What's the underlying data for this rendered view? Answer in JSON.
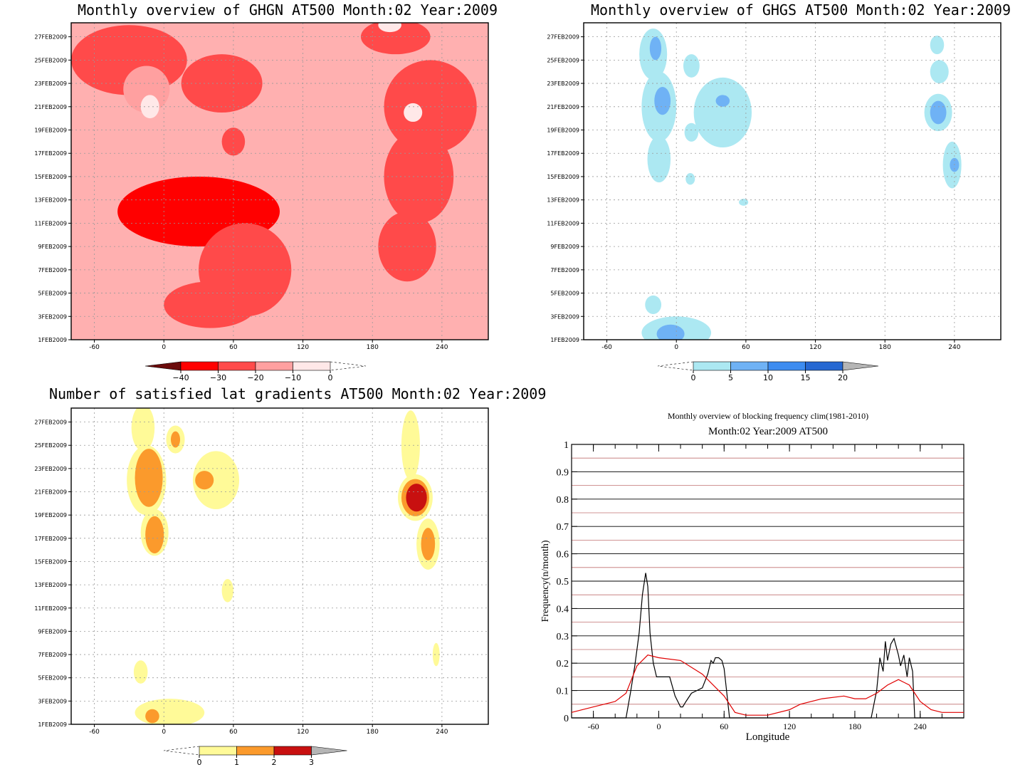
{
  "colors": {
    "ghgn": [
      "#6b0b0b",
      "#ff0000",
      "#ff4a4a",
      "#ffa0a0",
      "#ffe8e8"
    ],
    "ghgs": [
      "#ace8f2",
      "#6fb2f5",
      "#3d8cf0",
      "#2668d2",
      "#b5b5b5"
    ],
    "grad": [
      "#fffa98",
      "#fb9a2c",
      "#c81010",
      "#b5b5b5"
    ],
    "freq_series": [
      "#000000",
      "#e00000"
    ]
  },
  "panels": [
    {
      "title": "Monthly overview of GHGN AT500 Month:02 Year:2009",
      "colorbar_labels": [
        "−40",
        "−30",
        "−20",
        "−10",
        "0"
      ]
    },
    {
      "title": "Monthly overview of GHGS AT500 Month:02 Year:2009",
      "colorbar_labels": [
        "0",
        "5",
        "10",
        "15",
        "20"
      ]
    },
    {
      "title": "Number of satisfied lat gradients AT500 Month:02 Year:2009",
      "colorbar_labels": [
        "0",
        "1",
        "2",
        "3"
      ]
    }
  ],
  "chart_data": [
    {
      "type": "heatmap",
      "title": "Monthly overview of GHGN AT500 Month:02 Year:2009",
      "x_tick_labels": [
        "-60",
        "0",
        "60",
        "120",
        "180",
        "240"
      ],
      "y_tick_labels": [
        "1FEB2009",
        "3FEB2009",
        "5FEB2009",
        "7FEB2009",
        "9FEB2009",
        "11FEB2009",
        "13FEB2009",
        "15FEB2009",
        "17FEB2009",
        "19FEB2009",
        "21FEB2009",
        "23FEB2009",
        "25FEB2009",
        "27FEB2009"
      ],
      "xlim": [
        -80,
        280
      ],
      "ylim": [
        0,
        27.2
      ],
      "levels": [
        -40,
        -30,
        -20,
        -10,
        0
      ],
      "blobs": [
        {
          "x": -30,
          "y": 24,
          "rx": 50,
          "ry": 3,
          "level": 2
        },
        {
          "x": -15,
          "y": 21.5,
          "rx": 20,
          "ry": 2,
          "level": 3
        },
        {
          "x": -12,
          "y": 20,
          "rx": 8,
          "ry": 1,
          "level": 4
        },
        {
          "x": 50,
          "y": 22,
          "rx": 35,
          "ry": 2.5,
          "level": 2
        },
        {
          "x": 60,
          "y": 17,
          "rx": 10,
          "ry": 1.2,
          "level": 2
        },
        {
          "x": 30,
          "y": 11,
          "rx": 70,
          "ry": 3,
          "level": 1
        },
        {
          "x": 70,
          "y": 6,
          "rx": 40,
          "ry": 4,
          "level": 2
        },
        {
          "x": 40,
          "y": 3,
          "rx": 40,
          "ry": 2,
          "level": 2
        },
        {
          "x": 230,
          "y": 20,
          "rx": 40,
          "ry": 4,
          "level": 2
        },
        {
          "x": 220,
          "y": 14,
          "rx": 30,
          "ry": 4,
          "level": 2
        },
        {
          "x": 210,
          "y": 8,
          "rx": 25,
          "ry": 3,
          "level": 2
        },
        {
          "x": 215,
          "y": 19.5,
          "rx": 8,
          "ry": 0.8,
          "level": 4
        },
        {
          "x": 200,
          "y": 26,
          "rx": 30,
          "ry": 1.5,
          "level": 2
        },
        {
          "x": 195,
          "y": 27,
          "rx": 10,
          "ry": 0.6,
          "level": 4
        }
      ]
    },
    {
      "type": "heatmap",
      "title": "Monthly overview of GHGS AT500 Month:02 Year:2009",
      "x_tick_labels": [
        "-60",
        "0",
        "60",
        "120",
        "180",
        "240"
      ],
      "y_tick_labels": [
        "1FEB2009",
        "3FEB2009",
        "5FEB2009",
        "7FEB2009",
        "9FEB2009",
        "11FEB2009",
        "13FEB2009",
        "15FEB2009",
        "17FEB2009",
        "19FEB2009",
        "21FEB2009",
        "23FEB2009",
        "25FEB2009",
        "27FEB2009"
      ],
      "xlim": [
        -80,
        280
      ],
      "ylim": [
        0,
        27.2
      ],
      "levels": [
        0,
        5,
        10,
        15,
        20
      ],
      "blobs": [
        {
          "x": -20,
          "y": 24.5,
          "rx": 12,
          "ry": 2.2,
          "level": 0
        },
        {
          "x": -18,
          "y": 25,
          "rx": 5,
          "ry": 1,
          "level": 1
        },
        {
          "x": -15,
          "y": 20,
          "rx": 15,
          "ry": 3,
          "level": 0
        },
        {
          "x": -12,
          "y": 20.5,
          "rx": 7,
          "ry": 1.2,
          "level": 1
        },
        {
          "x": -15,
          "y": 15.5,
          "rx": 10,
          "ry": 2,
          "level": 0
        },
        {
          "x": 13,
          "y": 23.5,
          "rx": 7,
          "ry": 1,
          "level": 0
        },
        {
          "x": 13,
          "y": 17.8,
          "rx": 6,
          "ry": 0.8,
          "level": 0
        },
        {
          "x": 12,
          "y": 13.8,
          "rx": 4,
          "ry": 0.5,
          "level": 0
        },
        {
          "x": 40,
          "y": 19.5,
          "rx": 25,
          "ry": 3,
          "level": 0
        },
        {
          "x": 40,
          "y": 20.5,
          "rx": 6,
          "ry": 0.5,
          "level": 1
        },
        {
          "x": 58,
          "y": 11.8,
          "rx": 4,
          "ry": 0.3,
          "level": 0
        },
        {
          "x": -20,
          "y": 3,
          "rx": 7,
          "ry": 0.8,
          "level": 0
        },
        {
          "x": 0,
          "y": 0.6,
          "rx": 30,
          "ry": 1.4,
          "level": 0
        },
        {
          "x": -5,
          "y": 0.5,
          "rx": 12,
          "ry": 0.8,
          "level": 1
        },
        {
          "x": 225,
          "y": 25.3,
          "rx": 6,
          "ry": 0.8,
          "level": 0
        },
        {
          "x": 227,
          "y": 23,
          "rx": 8,
          "ry": 1,
          "level": 0
        },
        {
          "x": 226,
          "y": 19.5,
          "rx": 12,
          "ry": 1.6,
          "level": 0
        },
        {
          "x": 226,
          "y": 19.5,
          "rx": 7,
          "ry": 1,
          "level": 1
        },
        {
          "x": 238,
          "y": 15,
          "rx": 8,
          "ry": 2,
          "level": 0
        },
        {
          "x": 240,
          "y": 15,
          "rx": 4,
          "ry": 0.6,
          "level": 1
        }
      ]
    },
    {
      "type": "heatmap",
      "title": "Number of satisfied lat gradients AT500 Month:02 Year:2009",
      "x_tick_labels": [
        "-60",
        "0",
        "60",
        "120",
        "180",
        "240"
      ],
      "y_tick_labels": [
        "1FEB2009",
        "3FEB2009",
        "5FEB2009",
        "7FEB2009",
        "9FEB2009",
        "11FEB2009",
        "13FEB2009",
        "15FEB2009",
        "17FEB2009",
        "19FEB2009",
        "21FEB2009",
        "23FEB2009",
        "25FEB2009",
        "27FEB2009"
      ],
      "xlim": [
        -80,
        280
      ],
      "ylim": [
        0,
        27.2
      ],
      "levels": [
        0,
        1,
        2,
        3
      ],
      "blobs": [
        {
          "x": -18,
          "y": 25.5,
          "rx": 10,
          "ry": 2,
          "level": 0
        },
        {
          "x": 10,
          "y": 24.5,
          "rx": 8,
          "ry": 1.2,
          "level": 0
        },
        {
          "x": 10,
          "y": 24.5,
          "rx": 4,
          "ry": 0.7,
          "level": 1
        },
        {
          "x": -15,
          "y": 21,
          "rx": 17,
          "ry": 3,
          "level": 0
        },
        {
          "x": -13,
          "y": 21.2,
          "rx": 12,
          "ry": 2.5,
          "level": 1
        },
        {
          "x": -8,
          "y": 16.5,
          "rx": 12,
          "ry": 2,
          "level": 0
        },
        {
          "x": -8,
          "y": 16.3,
          "rx": 8,
          "ry": 1.6,
          "level": 1
        },
        {
          "x": 45,
          "y": 21,
          "rx": 20,
          "ry": 2.5,
          "level": 0
        },
        {
          "x": 35,
          "y": 21,
          "rx": 8,
          "ry": 0.8,
          "level": 1
        },
        {
          "x": 55,
          "y": 11.5,
          "rx": 5,
          "ry": 1,
          "level": 0
        },
        {
          "x": -20,
          "y": 4.5,
          "rx": 6,
          "ry": 1,
          "level": 0
        },
        {
          "x": 5,
          "y": 1,
          "rx": 30,
          "ry": 1.2,
          "level": 0
        },
        {
          "x": -10,
          "y": 0.7,
          "rx": 6,
          "ry": 0.6,
          "level": 1
        },
        {
          "x": 213,
          "y": 24,
          "rx": 8,
          "ry": 3,
          "level": 0
        },
        {
          "x": 217,
          "y": 19.5,
          "rx": 15,
          "ry": 2,
          "level": 0
        },
        {
          "x": 217,
          "y": 19.5,
          "rx": 12,
          "ry": 1.6,
          "level": 1
        },
        {
          "x": 218,
          "y": 19.5,
          "rx": 9,
          "ry": 1.2,
          "level": 2
        },
        {
          "x": 228,
          "y": 15.5,
          "rx": 10,
          "ry": 2.2,
          "level": 0
        },
        {
          "x": 228,
          "y": 15.5,
          "rx": 6,
          "ry": 1.4,
          "level": 1
        },
        {
          "x": 235,
          "y": 6,
          "rx": 3,
          "ry": 1,
          "level": 0
        }
      ]
    },
    {
      "type": "line",
      "title": "Monthly overview of blocking frequency clim(1981-2010)",
      "subtitle": "Month:02 Year:2009  AT500",
      "xlabel": "Longitude",
      "ylabel": "Frequency(n/month)",
      "xlim": [
        -80,
        280
      ],
      "ylim": [
        0,
        1
      ],
      "x_ticks": [
        -60,
        0,
        60,
        120,
        180,
        240
      ],
      "y_ticks": [
        0,
        0.1,
        0.2,
        0.3,
        0.4,
        0.5,
        0.6,
        0.7,
        0.8,
        0.9,
        1
      ],
      "series": [
        {
          "x": [
            -80,
            -30,
            -26,
            -22,
            -18,
            -15,
            -12,
            -10,
            -8,
            -5,
            -2,
            0,
            5,
            10,
            15,
            20,
            22,
            25,
            30,
            35,
            40,
            45,
            48,
            50,
            52,
            55,
            58,
            60,
            62,
            65,
            70,
            195,
            200,
            203,
            206,
            208,
            210,
            213,
            216,
            218,
            220,
            222,
            225,
            228,
            230,
            233,
            235,
            240,
            280
          ],
          "y": [
            0,
            0,
            0.09,
            0.19,
            0.31,
            0.45,
            0.53,
            0.48,
            0.31,
            0.2,
            0.15,
            0.15,
            0.15,
            0.15,
            0.08,
            0.04,
            0.04,
            0.06,
            0.09,
            0.1,
            0.11,
            0.16,
            0.21,
            0.2,
            0.22,
            0.22,
            0.21,
            0.18,
            0.11,
            0,
            0,
            0,
            0.1,
            0.22,
            0.17,
            0.28,
            0.21,
            0.27,
            0.29,
            0.26,
            0.23,
            0.19,
            0.23,
            0.15,
            0.22,
            0.17,
            0,
            0,
            0
          ]
        },
        {
          "x": [
            -80,
            -60,
            -40,
            -30,
            -20,
            -10,
            0,
            20,
            40,
            60,
            70,
            80,
            100,
            120,
            130,
            150,
            170,
            180,
            190,
            200,
            210,
            220,
            230,
            240,
            250,
            260,
            280
          ],
          "y": [
            0.02,
            0.04,
            0.06,
            0.09,
            0.19,
            0.23,
            0.22,
            0.21,
            0.16,
            0.08,
            0.02,
            0.01,
            0.01,
            0.03,
            0.05,
            0.07,
            0.08,
            0.07,
            0.07,
            0.09,
            0.12,
            0.14,
            0.12,
            0.06,
            0.03,
            0.02,
            0.02
          ]
        }
      ]
    }
  ]
}
